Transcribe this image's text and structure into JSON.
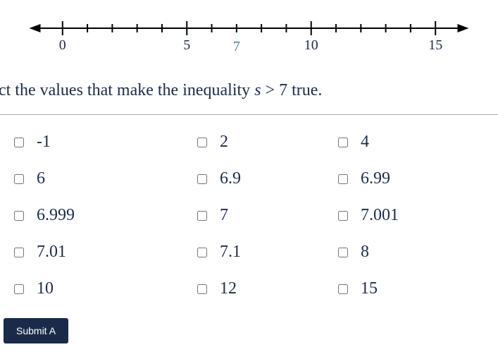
{
  "numberLine": {
    "min": -1,
    "max": 16,
    "majorTicks": [
      {
        "value": 0,
        "label": "0"
      },
      {
        "value": 5,
        "label": "5"
      },
      {
        "value": 10,
        "label": "10"
      },
      {
        "value": 15,
        "label": "15"
      }
    ],
    "minorTickStep": 1,
    "marker": {
      "value": 7,
      "label": "7",
      "color": "#3b7ba8"
    },
    "lineColor": "#000000",
    "labelColor": "#1a2b4a"
  },
  "question": {
    "prefix": "elect the values that make the inequality ",
    "variable": "s",
    "operator": ">",
    "rhs": "7",
    "suffix": " true."
  },
  "options": [
    {
      "label": "-1"
    },
    {
      "label": "2"
    },
    {
      "label": "4"
    },
    {
      "label": "6"
    },
    {
      "label": "6.9"
    },
    {
      "label": "6.99"
    },
    {
      "label": "6.999"
    },
    {
      "label": "7"
    },
    {
      "label": "7.001"
    },
    {
      "label": "7.01"
    },
    {
      "label": "7.1"
    },
    {
      "label": "8"
    },
    {
      "label": "10"
    },
    {
      "label": "12"
    },
    {
      "label": "15"
    }
  ],
  "submitLabel": "Submit A",
  "colors": {
    "text": "#1a2b4a",
    "marker": "#3b7ba8",
    "background": "#ffffff",
    "button": "#1a2b4a",
    "buttonText": "#ffffff"
  }
}
